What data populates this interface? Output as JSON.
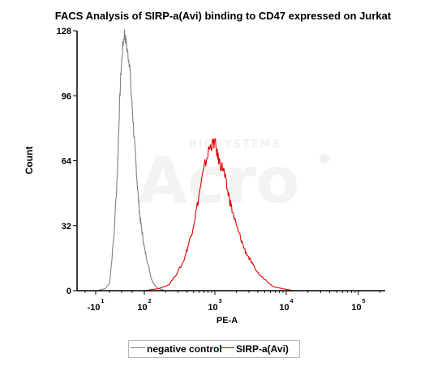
{
  "chart_data": {
    "type": "line",
    "title": "FACS Analysis of SIRP-a(Avi) binding to CD47 expressed on Jurkat",
    "xlabel": "PE-A",
    "ylabel": "Count",
    "ylim": [
      0,
      128
    ],
    "yticks": [
      0,
      32,
      64,
      96,
      128
    ],
    "xticks": [
      {
        "base": "-10",
        "exp": "1",
        "pos": -1
      },
      {
        "base": "10",
        "exp": "2",
        "pos": 2
      },
      {
        "base": "10",
        "exp": "3",
        "pos": 3
      },
      {
        "base": "10",
        "exp": "4",
        "pos": 4
      },
      {
        "base": "10",
        "exp": "5",
        "pos": 5
      }
    ],
    "xscale": "biexponential",
    "watermark": {
      "brand": "Acro",
      "sub": "BIOSYSTEMS"
    },
    "legend_position": "bottom",
    "series": [
      {
        "name": "negative control",
        "color": "#808080",
        "x": [
          0.5,
          0.9,
          1.1,
          1.2,
          1.3,
          1.38,
          1.42,
          1.46,
          1.5,
          1.54,
          1.58,
          1.62,
          1.66,
          1.7,
          1.74,
          1.78,
          1.82,
          1.86,
          1.9,
          1.94,
          1.98,
          2.02,
          2.06,
          2.1,
          2.14,
          2.2,
          2.3,
          2.5,
          3.0,
          3.5
        ],
        "y": [
          0,
          0,
          1,
          4,
          28,
          60,
          88,
          108,
          120,
          127,
          122,
          116,
          112,
          96,
          84,
          70,
          58,
          46,
          36,
          30,
          24,
          18,
          12,
          6,
          3,
          1,
          0,
          0,
          0,
          0
        ]
      },
      {
        "name": "SIRP-a(Avi)",
        "color": "#e00000",
        "x": [
          0.5,
          2.0,
          2.2,
          2.35,
          2.45,
          2.55,
          2.62,
          2.68,
          2.74,
          2.8,
          2.86,
          2.92,
          2.96,
          3.0,
          3.04,
          3.08,
          3.12,
          3.16,
          3.2,
          3.24,
          3.3,
          3.36,
          3.42,
          3.48,
          3.54,
          3.62,
          3.72,
          3.82,
          3.95,
          4.1,
          5.0
        ],
        "y": [
          0,
          0,
          1,
          3,
          8,
          14,
          22,
          30,
          40,
          52,
          62,
          70,
          72,
          73,
          66,
          62,
          60,
          52,
          46,
          40,
          32,
          26,
          20,
          16,
          12,
          8,
          5,
          2,
          1,
          0,
          0
        ]
      }
    ]
  }
}
